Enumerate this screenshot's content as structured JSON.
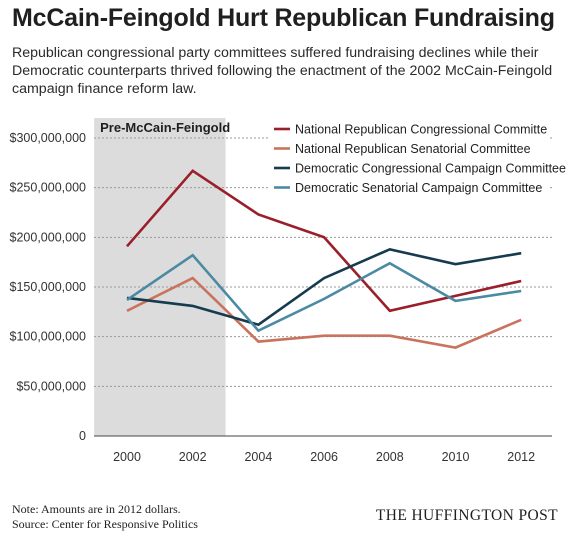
{
  "title": "McCain-Feingold Hurt Republican Fundraising",
  "subtitle": "Republican congressional party committees suffered fundraising declines while their Democratic counterparts thrived following the enactment of the 2002 McCain-Feingold campaign finance reform law.",
  "note_line1": "Note: Amounts are in 2012 dollars.",
  "note_line2": "Source: Center for Responsive Politics",
  "brand": "THE HUFFINGTON POST",
  "chart_data": {
    "type": "line",
    "x": [
      2000,
      2002,
      2004,
      2006,
      2008,
      2010,
      2012
    ],
    "x_tick_labels": [
      "2000",
      "2002",
      "2004",
      "2006",
      "2008",
      "2010",
      "2012"
    ],
    "y_tick_values": [
      0,
      50000000,
      100000000,
      150000000,
      200000000,
      250000000,
      300000000
    ],
    "y_tick_labels": [
      "0",
      "$50,000,000",
      "$100,000,000",
      "$150,000,000",
      "$200,000,000",
      "$250,000,000",
      "$300,000,000"
    ],
    "ylim": [
      0,
      300000000
    ],
    "grid": "horizontal dashed",
    "legend_position": "top-right",
    "shaded_region": {
      "label": "Pre-McCain-Feingold",
      "x_start": 1999,
      "x_end": 2003,
      "color": "#dcdcdc"
    },
    "series": [
      {
        "name": "National Republican Congressional Committe",
        "color": "#9b1f2a",
        "values": [
          191000000,
          267000000,
          223000000,
          200000000,
          126000000,
          141000000,
          156000000
        ]
      },
      {
        "name": "National Republican Senatorial Committee",
        "color": "#c9735f",
        "values": [
          126000000,
          159000000,
          95000000,
          101000000,
          101000000,
          89000000,
          117000000
        ]
      },
      {
        "name": "Democratic Congressional Campaign Committee",
        "color": "#163a4e",
        "values": [
          139000000,
          131000000,
          112000000,
          159000000,
          188000000,
          173000000,
          184000000
        ]
      },
      {
        "name": "Democratic Senatorial Campaign Committee",
        "color": "#4b8aa3",
        "values": [
          137000000,
          182000000,
          106000000,
          138000000,
          174000000,
          136000000,
          146000000
        ]
      }
    ]
  }
}
